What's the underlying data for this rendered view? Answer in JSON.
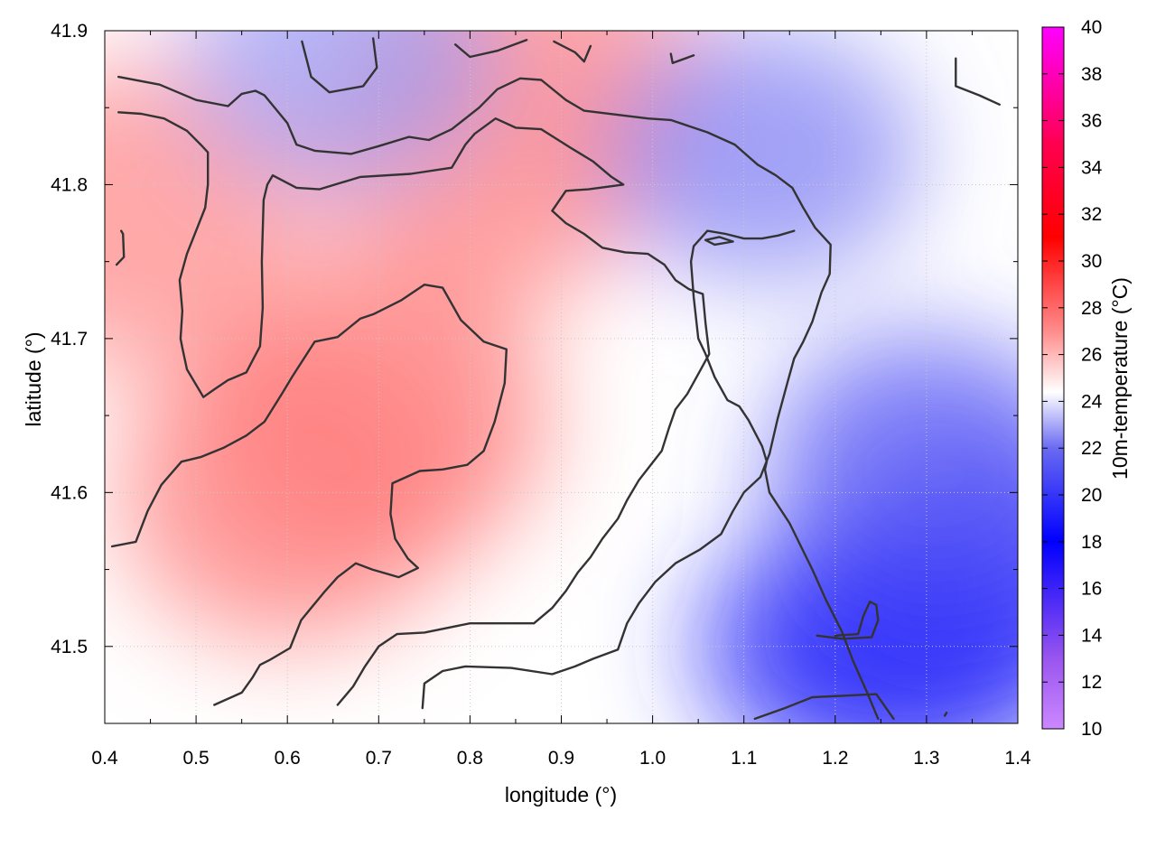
{
  "chart_data": {
    "type": "heatmap",
    "title": "",
    "xlabel": "longitude (°)",
    "ylabel": "latitude (°)",
    "xlim": [
      0.4,
      1.4
    ],
    "ylim": [
      41.45,
      41.9
    ],
    "x_ticks": [
      "0.4",
      "0.5",
      "0.6",
      "0.7",
      "0.8",
      "0.9",
      "1.0",
      "1.1",
      "1.2",
      "1.3",
      "1.4"
    ],
    "y_ticks": [
      "41.5",
      "41.6",
      "41.7",
      "41.8",
      "41.9"
    ],
    "grid": true,
    "colorbar": {
      "label": "10m-temperature (°C)",
      "range": [
        10,
        40
      ],
      "ticks": [
        "10",
        "12",
        "14",
        "16",
        "18",
        "20",
        "22",
        "24",
        "26",
        "28",
        "30",
        "32",
        "34",
        "36",
        "38",
        "40"
      ],
      "colors": [
        {
          "value": 10,
          "color": "#cc88ff"
        },
        {
          "value": 13,
          "color": "#9955ee"
        },
        {
          "value": 18,
          "color": "#0000ff"
        },
        {
          "value": 22,
          "color": "#6a6af2"
        },
        {
          "value": 24.4,
          "color": "#ffffff"
        },
        {
          "value": 27,
          "color": "#ff8c8c"
        },
        {
          "value": 31,
          "color": "#ff0000"
        },
        {
          "value": 35,
          "color": "#ff0050"
        },
        {
          "value": 40,
          "color": "#ff00ff"
        }
      ]
    },
    "field_hotspots": [
      {
        "lon": 0.7,
        "lat": 41.65,
        "value": 27.6
      },
      {
        "lon": 0.6,
        "lat": 41.6,
        "value": 27.4
      },
      {
        "lon": 0.82,
        "lat": 41.82,
        "value": 27.2
      },
      {
        "lon": 0.44,
        "lat": 41.78,
        "value": 27.0
      },
      {
        "lon": 0.87,
        "lat": 41.88,
        "value": 26.8
      },
      {
        "lon": 1.3,
        "lat": 41.5,
        "value": 19.6
      },
      {
        "lon": 1.38,
        "lat": 41.55,
        "value": 20.2
      },
      {
        "lon": 1.22,
        "lat": 41.5,
        "value": 19.8
      },
      {
        "lon": 1.3,
        "lat": 41.62,
        "value": 21.2
      },
      {
        "lon": 1.12,
        "lat": 41.82,
        "value": 22.4
      },
      {
        "lon": 0.66,
        "lat": 41.88,
        "value": 22.8
      }
    ],
    "contours": [
      [
        [
          0.415,
          41.87
        ],
        [
          0.46,
          41.865
        ],
        [
          0.48,
          41.86
        ],
        [
          0.5,
          41.855
        ],
        [
          0.535,
          41.851
        ],
        [
          0.55,
          41.859
        ],
        [
          0.565,
          41.861
        ],
        [
          0.575,
          41.858
        ],
        [
          0.6,
          41.84
        ],
        [
          0.61,
          41.826
        ],
        [
          0.63,
          41.822
        ],
        [
          0.67,
          41.82
        ],
        [
          0.7,
          41.825
        ],
        [
          0.733,
          41.831
        ],
        [
          0.755,
          41.829
        ],
        [
          0.78,
          41.836
        ],
        [
          0.81,
          41.85
        ],
        [
          0.83,
          41.862
        ],
        [
          0.855,
          41.869
        ],
        [
          0.878,
          41.868
        ],
        [
          0.905,
          41.855
        ],
        [
          0.925,
          41.848
        ],
        [
          0.995,
          41.843
        ],
        [
          1.02,
          41.842
        ],
        [
          1.06,
          41.834
        ],
        [
          1.09,
          41.826
        ],
        [
          1.115,
          41.813
        ],
        [
          1.135,
          41.806
        ],
        [
          1.153,
          41.798
        ],
        [
          1.165,
          41.785
        ],
        [
          1.178,
          41.772
        ],
        [
          1.195,
          41.761
        ],
        [
          1.194,
          41.742
        ],
        [
          1.185,
          41.73
        ],
        [
          1.175,
          41.711
        ],
        [
          1.165,
          41.698
        ],
        [
          1.155,
          41.687
        ],
        [
          1.148,
          41.672
        ],
        [
          1.137,
          41.648
        ],
        [
          1.128,
          41.625
        ],
        [
          1.118,
          41.61
        ],
        [
          1.1,
          41.6
        ],
        [
          1.088,
          41.588
        ],
        [
          1.075,
          41.573
        ],
        [
          1.052,
          41.563
        ],
        [
          1.025,
          41.554
        ],
        [
          1.003,
          41.542
        ],
        [
          0.985,
          41.528
        ],
        [
          0.972,
          41.515
        ],
        [
          0.962,
          41.498
        ],
        [
          0.935,
          41.492
        ],
        [
          0.915,
          41.487
        ],
        [
          0.89,
          41.482
        ],
        [
          0.845,
          41.486
        ],
        [
          0.795,
          41.487
        ],
        [
          0.77,
          41.484
        ],
        [
          0.75,
          41.476
        ],
        [
          0.748,
          41.46
        ]
      ],
      [
        [
          0.415,
          41.847
        ],
        [
          0.44,
          41.846
        ],
        [
          0.465,
          41.843
        ],
        [
          0.49,
          41.835
        ],
        [
          0.505,
          41.826
        ],
        [
          0.513,
          41.821
        ],
        [
          0.513,
          41.8
        ],
        [
          0.51,
          41.785
        ],
        [
          0.5,
          41.77
        ],
        [
          0.49,
          41.755
        ],
        [
          0.482,
          41.738
        ],
        [
          0.485,
          41.718
        ],
        [
          0.483,
          41.7
        ],
        [
          0.485,
          41.694
        ],
        [
          0.49,
          41.68
        ],
        [
          0.5,
          41.67
        ],
        [
          0.508,
          41.662
        ],
        [
          0.52,
          41.667
        ],
        [
          0.535,
          41.673
        ],
        [
          0.555,
          41.678
        ],
        [
          0.57,
          41.695
        ],
        [
          0.573,
          41.72
        ],
        [
          0.572,
          41.75
        ],
        [
          0.574,
          41.79
        ],
        [
          0.578,
          41.8
        ],
        [
          0.584,
          41.806
        ],
        [
          0.61,
          41.798
        ],
        [
          0.635,
          41.797
        ],
        [
          0.68,
          41.805
        ],
        [
          0.735,
          41.807
        ],
        [
          0.78,
          41.811
        ],
        [
          0.795,
          41.826
        ],
        [
          0.805,
          41.833
        ],
        [
          0.828,
          41.843
        ],
        [
          0.85,
          41.837
        ],
        [
          0.878,
          41.836
        ],
        [
          0.91,
          41.824
        ],
        [
          0.935,
          41.815
        ],
        [
          0.955,
          41.805
        ],
        [
          0.968,
          41.8
        ],
        [
          0.93,
          41.797
        ],
        [
          0.905,
          41.796
        ],
        [
          0.89,
          41.783
        ],
        [
          0.905,
          41.775
        ],
        [
          0.925,
          41.768
        ],
        [
          0.945,
          41.759
        ],
        [
          0.97,
          41.756
        ],
        [
          0.995,
          41.755
        ],
        [
          1.013,
          41.748
        ],
        [
          1.025,
          41.738
        ],
        [
          1.04,
          41.732
        ],
        [
          1.055,
          41.729
        ],
        [
          1.058,
          41.71
        ],
        [
          1.062,
          41.69
        ],
        [
          1.05,
          41.677
        ],
        [
          1.038,
          41.664
        ],
        [
          1.025,
          41.654
        ],
        [
          1.018,
          41.642
        ],
        [
          1.01,
          41.627
        ],
        [
          0.998,
          41.618
        ],
        [
          0.985,
          41.608
        ],
        [
          0.972,
          41.595
        ],
        [
          0.962,
          41.583
        ],
        [
          0.945,
          41.57
        ],
        [
          0.932,
          41.558
        ],
        [
          0.918,
          41.548
        ],
        [
          0.905,
          41.536
        ],
        [
          0.89,
          41.525
        ],
        [
          0.87,
          41.515
        ],
        [
          0.848,
          41.515
        ],
        [
          0.8,
          41.515
        ],
        [
          0.75,
          41.509
        ],
        [
          0.72,
          41.508
        ],
        [
          0.7,
          41.5
        ],
        [
          0.685,
          41.487
        ],
        [
          0.672,
          41.474
        ],
        [
          0.655,
          41.462
        ]
      ],
      [
        [
          0.408,
          41.565
        ],
        [
          0.434,
          41.568
        ],
        [
          0.447,
          41.588
        ],
        [
          0.462,
          41.605
        ],
        [
          0.484,
          41.62
        ],
        [
          0.505,
          41.623
        ],
        [
          0.53,
          41.629
        ],
        [
          0.555,
          41.637
        ],
        [
          0.575,
          41.646
        ],
        [
          0.595,
          41.665
        ],
        [
          0.605,
          41.675
        ],
        [
          0.63,
          41.698
        ],
        [
          0.655,
          41.701
        ],
        [
          0.68,
          41.713
        ],
        [
          0.695,
          41.716
        ],
        [
          0.725,
          41.725
        ],
        [
          0.75,
          41.735
        ],
        [
          0.77,
          41.733
        ],
        [
          0.79,
          41.712
        ],
        [
          0.815,
          41.698
        ],
        [
          0.84,
          41.693
        ],
        [
          0.838,
          41.671
        ],
        [
          0.827,
          41.646
        ],
        [
          0.815,
          41.627
        ],
        [
          0.797,
          41.618
        ],
        [
          0.77,
          41.615
        ],
        [
          0.745,
          41.614
        ],
        [
          0.715,
          41.606
        ],
        [
          0.713,
          41.586
        ],
        [
          0.718,
          41.57
        ],
        [
          0.732,
          41.557
        ],
        [
          0.743,
          41.551
        ],
        [
          0.722,
          41.545
        ],
        [
          0.693,
          41.55
        ],
        [
          0.675,
          41.554
        ],
        [
          0.655,
          41.545
        ],
        [
          0.64,
          41.535
        ],
        [
          0.626,
          41.525
        ],
        [
          0.615,
          41.517
        ],
        [
          0.603,
          41.499
        ],
        [
          0.58,
          41.491
        ],
        [
          0.57,
          41.488
        ],
        [
          0.562,
          41.48
        ],
        [
          0.55,
          41.47
        ],
        [
          0.52,
          41.462
        ]
      ],
      [
        [
          0.418,
          41.77
        ],
        [
          0.42,
          41.768
        ],
        [
          0.421,
          41.753
        ],
        [
          0.413,
          41.748
        ]
      ],
      [
        [
          0.616,
          41.893
        ],
        [
          0.626,
          41.87
        ],
        [
          0.646,
          41.86
        ],
        [
          0.683,
          41.864
        ],
        [
          0.698,
          41.876
        ],
        [
          0.694,
          41.895
        ]
      ],
      [
        [
          0.784,
          41.891
        ],
        [
          0.8,
          41.883
        ],
        [
          0.83,
          41.887
        ],
        [
          0.862,
          41.894
        ]
      ],
      [
        [
          0.892,
          41.893
        ],
        [
          0.915,
          41.886
        ],
        [
          0.925,
          41.88
        ],
        [
          0.932,
          41.89
        ]
      ],
      [
        [
          1.02,
          41.885
        ],
        [
          1.022,
          41.879
        ],
        [
          1.045,
          41.884
        ]
      ],
      [
        [
          1.332,
          41.882
        ],
        [
          1.332,
          41.864
        ],
        [
          1.358,
          41.858
        ],
        [
          1.38,
          41.852
        ]
      ],
      [
        [
          1.247,
          41.453
        ],
        [
          1.235,
          41.47
        ],
        [
          1.22,
          41.49
        ],
        [
          1.207,
          41.51
        ],
        [
          1.19,
          41.53
        ],
        [
          1.175,
          41.55
        ],
        [
          1.165,
          41.562
        ],
        [
          1.15,
          41.58
        ],
        [
          1.128,
          41.6
        ],
        [
          1.123,
          41.615
        ],
        [
          1.125,
          41.62
        ],
        [
          1.12,
          41.63
        ],
        [
          1.105,
          41.647
        ],
        [
          1.095,
          41.656
        ],
        [
          1.082,
          41.66
        ],
        [
          1.068,
          41.675
        ],
        [
          1.058,
          41.69
        ],
        [
          1.05,
          41.7
        ],
        [
          1.045,
          41.727
        ],
        [
          1.042,
          41.75
        ],
        [
          1.045,
          41.76
        ],
        [
          1.06,
          41.77
        ],
        [
          1.08,
          41.768
        ],
        [
          1.1,
          41.765
        ],
        [
          1.12,
          41.765
        ],
        [
          1.138,
          41.767
        ],
        [
          1.155,
          41.77
        ]
      ],
      [
        [
          1.112,
          41.453
        ],
        [
          1.145,
          41.46
        ],
        [
          1.175,
          41.467
        ],
        [
          1.21,
          41.468
        ],
        [
          1.245,
          41.469
        ],
        [
          1.264,
          41.453
        ]
      ],
      [
        [
          1.18,
          41.507
        ],
        [
          1.208,
          41.505
        ],
        [
          1.24,
          41.506
        ],
        [
          1.247,
          41.517
        ],
        [
          1.245,
          41.527
        ],
        [
          1.238,
          41.529
        ],
        [
          1.231,
          41.52
        ],
        [
          1.225,
          41.508
        ],
        [
          1.2,
          41.507
        ]
      ],
      [
        [
          1.32,
          41.455
        ],
        [
          1.322,
          41.457
        ]
      ],
      [
        [
          1.058,
          41.764
        ],
        [
          1.073,
          41.766
        ],
        [
          1.088,
          41.763
        ],
        [
          1.068,
          41.761
        ],
        [
          1.058,
          41.764
        ]
      ]
    ]
  }
}
